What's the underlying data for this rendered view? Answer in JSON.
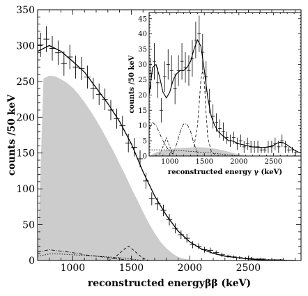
{
  "chart_data": [
    {
      "panel": "main",
      "type": "line",
      "xlabel": "reconstructed energyββ (keV)",
      "ylabel": "counts /50 keV",
      "xlim": [
        700,
        2950
      ],
      "ylim": [
        0,
        350
      ],
      "xticks": [
        1000,
        1500,
        2000,
        2500
      ],
      "yticks": [
        0,
        50,
        100,
        150,
        200,
        250,
        300,
        350
      ],
      "grid": false,
      "data_points": {
        "x": [
          725,
          775,
          825,
          875,
          925,
          975,
          1025,
          1075,
          1125,
          1175,
          1225,
          1275,
          1325,
          1375,
          1425,
          1475,
          1525,
          1575,
          1625,
          1675,
          1725,
          1775,
          1825,
          1875,
          1925,
          1975,
          2025,
          2075,
          2125,
          2175,
          2225,
          2275,
          2325,
          2375,
          2425,
          2475,
          2525,
          2575,
          2625,
          2675,
          2725,
          2775,
          2825
        ],
        "y": [
          301,
          309,
          296,
          290,
          275,
          284,
          270,
          268,
          256,
          240,
          232,
          225,
          210,
          198,
          188,
          164,
          158,
          142,
          111,
          86,
          79,
          70,
          57,
          45,
          36,
          31,
          22,
          20,
          15,
          14,
          11,
          8,
          6,
          5,
          4,
          3,
          3,
          2,
          2,
          1,
          1,
          1,
          0
        ],
        "err": [
          17,
          18,
          17,
          17,
          17,
          17,
          16,
          16,
          16,
          15,
          15,
          15,
          14,
          14,
          14,
          13,
          13,
          12,
          11,
          9,
          9,
          8,
          8,
          7,
          6,
          6,
          5,
          4,
          4,
          4,
          3,
          3,
          2,
          2,
          2,
          2,
          2,
          1,
          1,
          1,
          1,
          1,
          1
        ]
      },
      "fit": {
        "x": [
          700,
          800,
          900,
          1000,
          1100,
          1200,
          1300,
          1400,
          1500,
          1600,
          1700,
          1800,
          1900,
          2000,
          2100,
          2200,
          2300,
          2400,
          2500,
          2600,
          2700,
          2800,
          2900
        ],
        "y": [
          292,
          300,
          292,
          278,
          263,
          241,
          219,
          194,
          163,
          124,
          90,
          63,
          41,
          26,
          16,
          10,
          6,
          4,
          2,
          1,
          0.5,
          0.3,
          0
        ]
      },
      "filled_component": {
        "x": [
          700,
          750,
          800,
          850,
          900,
          950,
          1000,
          1050,
          1100,
          1150,
          1200,
          1250,
          1300,
          1350,
          1400,
          1450,
          1500,
          1550,
          1600,
          1650,
          1700,
          1750,
          1800,
          1850,
          1900,
          1950,
          2000,
          2050,
          2100,
          2150,
          2200
        ],
        "y": [
          0,
          254,
          258,
          257,
          253,
          248,
          241,
          232,
          221,
          209,
          196,
          182,
          167,
          152,
          135,
          119,
          101,
          85,
          68,
          52,
          38,
          26,
          17,
          10,
          5,
          2.5,
          1,
          0.4,
          0.1,
          0,
          0
        ]
      },
      "minor_dashed": {
        "x": [
          1300,
          1350,
          1400,
          1450,
          1475,
          1500,
          1550,
          1600,
          1650
        ],
        "y": [
          0,
          3,
          10,
          17,
          20,
          17,
          10,
          3,
          0
        ]
      },
      "minor_dash_dot": {
        "x": [
          700,
          800,
          900,
          1000,
          1100,
          1200,
          1300,
          1400,
          1500
        ],
        "y": [
          12,
          15,
          13,
          11,
          8,
          6,
          4,
          2,
          0
        ]
      },
      "minor_dotted": {
        "x": [
          700,
          800,
          900,
          1000,
          1100,
          1200,
          1300,
          1400,
          1500,
          1600
        ],
        "y": [
          6,
          9,
          9,
          8,
          7,
          6,
          5,
          4,
          2,
          0
        ]
      }
    },
    {
      "panel": "inset",
      "type": "line",
      "xlabel": "reconstructed energy  γ (keV)",
      "ylabel": "counts /50 keV",
      "xlim": [
        700,
        2900
      ],
      "ylim": [
        0,
        47
      ],
      "xticks": [
        1000,
        1500,
        2000,
        2500
      ],
      "yticks": [
        0,
        5,
        10,
        15,
        20,
        25,
        30,
        35,
        40,
        45
      ],
      "grid": false,
      "data_points": {
        "x": [
          725,
          775,
          825,
          875,
          925,
          975,
          1025,
          1075,
          1125,
          1175,
          1225,
          1275,
          1325,
          1375,
          1425,
          1475,
          1525,
          1575,
          1625,
          1675,
          1725,
          1775,
          1825,
          1875,
          1925,
          1975,
          2025,
          2075,
          2125,
          2175,
          2225,
          2275,
          2325,
          2375,
          2425,
          2475,
          2525,
          2575,
          2625,
          2675,
          2725,
          2775,
          2825
        ],
        "y": [
          27,
          31,
          24,
          15,
          26,
          30,
          28,
          22,
          28,
          31,
          29,
          28,
          32,
          38,
          40,
          34,
          26,
          18,
          13,
          11,
          9,
          8,
          6,
          5,
          6,
          4,
          5,
          3,
          4,
          3,
          3,
          3,
          2,
          2,
          3,
          3,
          4,
          3,
          5,
          3,
          2,
          2,
          1
        ],
        "err": [
          5,
          6,
          5,
          4,
          5,
          5,
          5,
          5,
          5,
          6,
          5,
          5,
          6,
          6,
          6,
          6,
          5,
          4,
          4,
          3,
          3,
          3,
          2,
          2,
          2,
          2,
          2,
          2,
          2,
          2,
          2,
          2,
          1,
          1,
          2,
          2,
          2,
          2,
          2,
          2,
          1,
          1,
          1
        ]
      },
      "fit": {
        "x": [
          700,
          750,
          800,
          850,
          900,
          950,
          1000,
          1050,
          1100,
          1150,
          1200,
          1250,
          1300,
          1350,
          1400,
          1450,
          1500,
          1550,
          1600,
          1650,
          1700,
          1750,
          1800,
          1850,
          1900,
          2000,
          2100,
          2200,
          2300,
          2400,
          2500,
          2550,
          2600,
          2650,
          2700,
          2750,
          2800,
          2850,
          2900
        ],
        "y": [
          20,
          29,
          30,
          26,
          21,
          19,
          21,
          25,
          27,
          28,
          28,
          29,
          31,
          35,
          38,
          36,
          28,
          19,
          13,
          10,
          8,
          7,
          6,
          5,
          5,
          4,
          3.5,
          3,
          2.8,
          2.8,
          3.5,
          4.2,
          4.5,
          4.3,
          3.6,
          2.8,
          2,
          1.4,
          1
        ]
      },
      "filled_component": {
        "x": [
          700,
          800,
          900,
          1000,
          1100,
          1200,
          1300,
          1400,
          1500,
          1600,
          1700,
          1800,
          1900,
          2000,
          2100
        ],
        "y": [
          0,
          1.2,
          1.8,
          2.2,
          2.5,
          2.7,
          2.8,
          2.9,
          2.8,
          2.6,
          2.2,
          1.7,
          1.1,
          0.5,
          0
        ]
      },
      "dashed_peak": {
        "x": [
          1350,
          1400,
          1425,
          1450,
          1475,
          1500,
          1525,
          1550,
          1600,
          1650
        ],
        "y": [
          3,
          10,
          17,
          25,
          28,
          24,
          14,
          6,
          1.5,
          0.5
        ]
      },
      "dash_dot_peak_1": {
        "x": [
          1050,
          1100,
          1150,
          1200,
          1250,
          1300,
          1350,
          1400
        ],
        "y": [
          1,
          4,
          8,
          10.5,
          10.5,
          8,
          4,
          1
        ]
      },
      "dash_dot_peak_2": {
        "x": [
          700,
          750,
          800,
          850,
          900,
          950,
          1000,
          1050
        ],
        "y": [
          9,
          11,
          10,
          7.5,
          5,
          3,
          1.5,
          0.5
        ]
      },
      "dashed_peak_small": {
        "x": [
          850,
          900,
          950,
          1000,
          1050
        ],
        "y": [
          0.5,
          3,
          6,
          3,
          0.5
        ]
      },
      "dotted_low": {
        "x": [
          700,
          1000,
          1300,
          1600,
          2000
        ],
        "y": [
          2,
          2,
          1.5,
          1,
          0
        ]
      }
    }
  ]
}
